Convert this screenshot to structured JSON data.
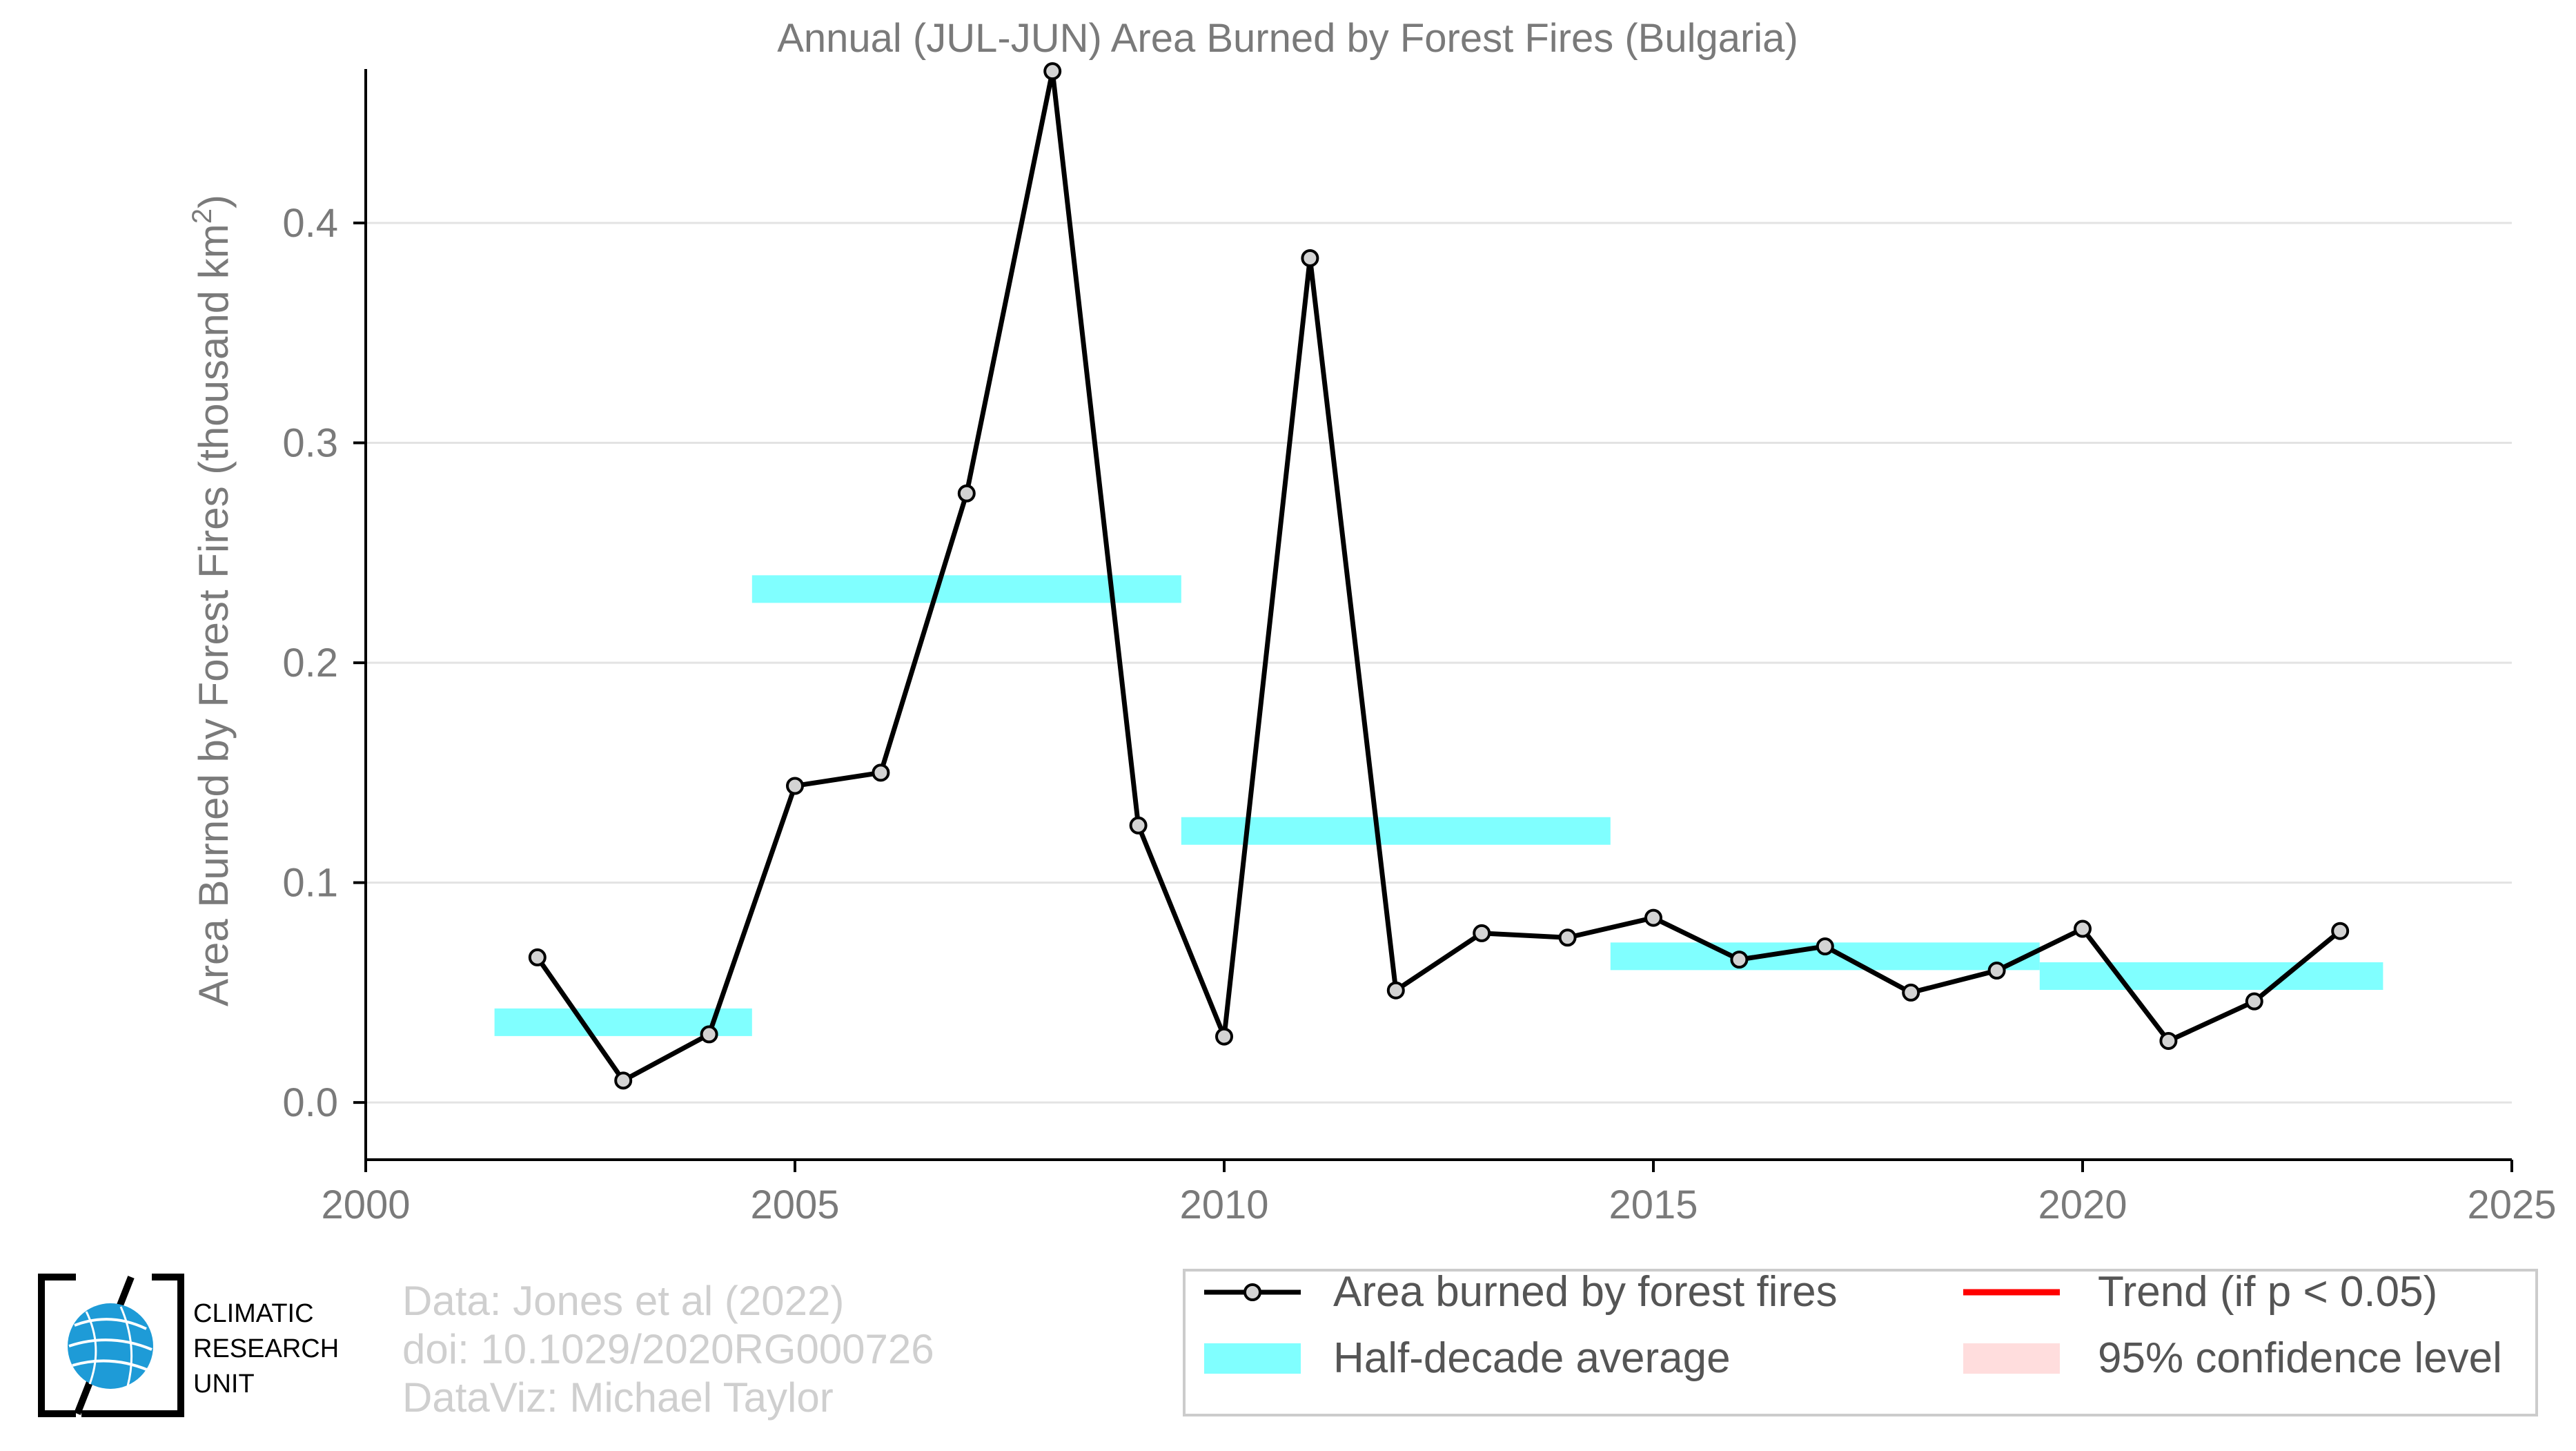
{
  "chart_data": {
    "type": "line",
    "title": "Annual (JUL-JUN) Area Burned by Forest Fires (Bulgaria)",
    "xlabel": "",
    "ylabel": "Area Burned by Forest Fires (thousand km",
    "ylabel_sup": "2",
    "ylabel_close": ")",
    "xlim": [
      2000,
      2025
    ],
    "ylim": [
      -0.026,
      0.47
    ],
    "xticks": [
      2000,
      2005,
      2010,
      2015,
      2020,
      2025
    ],
    "xtick_labels": [
      "2000",
      "2005",
      "2010",
      "2015",
      "2020",
      "2025"
    ],
    "yticks": [
      0.0,
      0.1,
      0.2,
      0.3,
      0.4
    ],
    "ytick_labels": [
      "0.0",
      "0.1",
      "0.2",
      "0.3",
      "0.4"
    ],
    "grid": "horizontal",
    "series": [
      {
        "name": "Area burned by forest fires",
        "color": "#000000",
        "x": [
          2002,
          2003,
          2004,
          2005,
          2006,
          2007,
          2008,
          2009,
          2010,
          2011,
          2012,
          2013,
          2014,
          2015,
          2016,
          2017,
          2018,
          2019,
          2020,
          2021,
          2022,
          2023
        ],
        "values": [
          0.066,
          0.01,
          0.031,
          0.144,
          0.15,
          0.277,
          0.469,
          0.126,
          0.03,
          0.384,
          0.051,
          0.077,
          0.075,
          0.084,
          0.065,
          0.071,
          0.05,
          0.06,
          0.079,
          0.028,
          0.046,
          0.078
        ]
      }
    ],
    "half_decade_average": {
      "name": "Half-decade average",
      "color": "#80ffff",
      "segments": [
        {
          "x_start": 2001.5,
          "x_end": 2004.5,
          "value": 0.0365
        },
        {
          "x_start": 2004.5,
          "x_end": 2009.5,
          "value": 0.2335
        },
        {
          "x_start": 2009.5,
          "x_end": 2014.5,
          "value": 0.1235
        },
        {
          "x_start": 2014.5,
          "x_end": 2019.5,
          "value": 0.0665
        },
        {
          "x_start": 2019.5,
          "x_end": 2023.5,
          "value": 0.0575
        }
      ]
    },
    "legend": {
      "placement": "bottom-right",
      "entries": [
        {
          "label": "Area burned by forest fires",
          "kind": "line-marker",
          "color": "#000000"
        },
        {
          "label": "Trend (if p < 0.05)",
          "kind": "line",
          "color": "#ff0000"
        },
        {
          "label": "Half-decade average",
          "kind": "patch",
          "color": "#80ffff"
        },
        {
          "label": "95% confidence level",
          "kind": "patch",
          "color": "#ffdddd"
        }
      ]
    }
  },
  "credits": {
    "line1": "Data: Jones et al (2022)",
    "line2": "doi: 10.1029/2020RG000726",
    "line3": "DataViz: Michael Taylor"
  },
  "logo": {
    "line1": "CLIMATIC",
    "line2": "RESEARCH",
    "line3": "UNIT"
  },
  "colors": {
    "axis_text": "#7a7a7a",
    "credits": "#cfcfcf",
    "globe": "#1e9bd7"
  }
}
